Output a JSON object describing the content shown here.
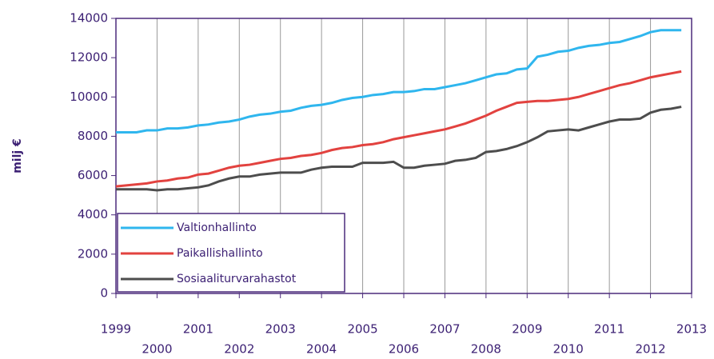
{
  "chart_data": {
    "type": "line",
    "ylabel": "milj €",
    "x": [
      1999,
      1999.25,
      1999.5,
      1999.75,
      2000,
      2000.25,
      2000.5,
      2000.75,
      2001,
      2001.25,
      2001.5,
      2001.75,
      2002,
      2002.25,
      2002.5,
      2002.75,
      2003,
      2003.25,
      2003.5,
      2003.75,
      2004,
      2004.25,
      2004.5,
      2004.75,
      2005,
      2005.25,
      2005.5,
      2005.75,
      2006,
      2006.25,
      2006.5,
      2006.75,
      2007,
      2007.25,
      2007.5,
      2007.75,
      2008,
      2008.25,
      2008.5,
      2008.75,
      2009,
      2009.25,
      2009.5,
      2009.75,
      2010,
      2010.25,
      2010.5,
      2010.75,
      2011,
      2011.25,
      2011.5,
      2011.75,
      2012,
      2012.25,
      2012.5,
      2012.75
    ],
    "series": [
      {
        "name": "Valtionhallinto",
        "color": "#2fb6ee",
        "values": [
          8200,
          8200,
          8200,
          8300,
          8300,
          8400,
          8400,
          8450,
          8550,
          8600,
          8700,
          8750,
          8850,
          9000,
          9100,
          9150,
          9250,
          9300,
          9450,
          9550,
          9600,
          9700,
          9850,
          9950,
          10000,
          10100,
          10150,
          10250,
          10250,
          10300,
          10400,
          10400,
          10500,
          10600,
          10700,
          10850,
          11000,
          11150,
          11200,
          11400,
          11450,
          12050,
          12150,
          12300,
          12350,
          12500,
          12600,
          12650,
          12750,
          12800,
          12950,
          13100,
          13300,
          13400,
          13400,
          13400
        ]
      },
      {
        "name": "Paikallishallinto",
        "color": "#e2423f",
        "values": [
          5450,
          5500,
          5550,
          5600,
          5700,
          5750,
          5850,
          5900,
          6050,
          6100,
          6250,
          6400,
          6500,
          6550,
          6650,
          6750,
          6850,
          6900,
          7000,
          7050,
          7150,
          7300,
          7400,
          7450,
          7550,
          7600,
          7700,
          7850,
          7950,
          8050,
          8150,
          8250,
          8350,
          8500,
          8650,
          8850,
          9050,
          9300,
          9500,
          9700,
          9750,
          9800,
          9800,
          9850,
          9900,
          10000,
          10150,
          10300,
          10450,
          10600,
          10700,
          10850,
          11000,
          11100,
          11200,
          11300
        ]
      },
      {
        "name": "Sosiaaliturvarahastot",
        "color": "#4d4d4d",
        "values": [
          5300,
          5300,
          5300,
          5300,
          5250,
          5300,
          5300,
          5350,
          5400,
          5500,
          5700,
          5850,
          5950,
          5950,
          6050,
          6100,
          6150,
          6150,
          6150,
          6300,
          6400,
          6450,
          6450,
          6450,
          6650,
          6650,
          6650,
          6700,
          6400,
          6400,
          6500,
          6550,
          6600,
          6750,
          6800,
          6900,
          7200,
          7250,
          7350,
          7500,
          7700,
          7950,
          8250,
          8300,
          8350,
          8300,
          8450,
          8600,
          8750,
          8850,
          8850,
          8900,
          9200,
          9350,
          9400,
          9500
        ]
      }
    ],
    "xlim": [
      1999,
      2013
    ],
    "xticks": [
      1999,
      2000,
      2001,
      2002,
      2003,
      2004,
      2005,
      2006,
      2007,
      2008,
      2009,
      2010,
      2011,
      2012,
      2013
    ],
    "ylim": [
      0,
      14000
    ],
    "yticks": [
      0,
      2000,
      4000,
      6000,
      8000,
      10000,
      12000,
      14000
    ],
    "grid": "x",
    "legend": "lower left"
  }
}
